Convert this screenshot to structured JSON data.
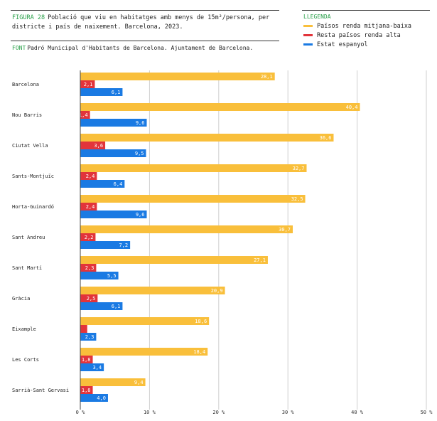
{
  "figure": {
    "label": "FIGURA 28",
    "title": "Població que viu en habitatges amb menys de 15m²/persona, per districte i país de naixement. Barcelona, 2023.",
    "source_label": "FONT",
    "source": "Padró Municipal d'Habitants de Barcelona. Ajuntament de Barcelona."
  },
  "legend": {
    "title": "LLEGENDA",
    "items": [
      {
        "label": "Països renda mitjana-baixa",
        "color": "#f9bf3b"
      },
      {
        "label": "Resta països renda alta",
        "color": "#e2343b"
      },
      {
        "label": "Estat espanyol",
        "color": "#1a7ae3"
      }
    ]
  },
  "chart_data": {
    "type": "bar",
    "orientation": "horizontal",
    "categories": [
      "Barcelona",
      "Nou Barris",
      "Ciutat Vella",
      "Sants-Montjuïc",
      "Horta-Guinardó",
      "Sant Andreu",
      "Sant Martí",
      "Gràcia",
      "Eixample",
      "Les Corts",
      "Sarrià-Sant Gervasi"
    ],
    "series": [
      {
        "name": "Països renda mitjana-baixa",
        "color": "#f9bf3b",
        "values": [
          28.1,
          40.4,
          36.6,
          32.7,
          32.5,
          30.7,
          27.1,
          20.9,
          18.6,
          18.4,
          9.4
        ],
        "labels": [
          "28,1",
          "40,4",
          "36,6",
          "32,7",
          "32,5",
          "30,7",
          "27,1",
          "20,9",
          "18,6",
          "18,4",
          "9,4"
        ]
      },
      {
        "name": "Resta països renda alta",
        "color": "#e2343b",
        "values": [
          2.1,
          1.4,
          3.6,
          2.4,
          2.4,
          2.2,
          2.3,
          2.5,
          1.0,
          1.8,
          1.8
        ],
        "labels": [
          "2,1",
          "1,4",
          "3,6",
          "2,4",
          "2,4",
          "2,2",
          "2,3",
          "2,5",
          "",
          "1,8",
          "1,8"
        ]
      },
      {
        "name": "Estat espanyol",
        "color": "#1a7ae3",
        "values": [
          6.1,
          9.6,
          9.5,
          6.4,
          9.6,
          7.2,
          5.5,
          6.1,
          2.3,
          3.4,
          4.0
        ],
        "labels": [
          "6,1",
          "9,6",
          "9,5",
          "6,4",
          "9,6",
          "7,2",
          "5,5",
          "6,1",
          "2,3",
          "3,4",
          "4,0"
        ]
      }
    ],
    "xlim": [
      0,
      50
    ],
    "xticks": [
      0,
      10,
      20,
      30,
      40,
      50
    ],
    "xtick_labels": [
      "0 %",
      "10 %",
      "20 %",
      "30 %",
      "40 %",
      "50 %"
    ],
    "grid": true
  }
}
